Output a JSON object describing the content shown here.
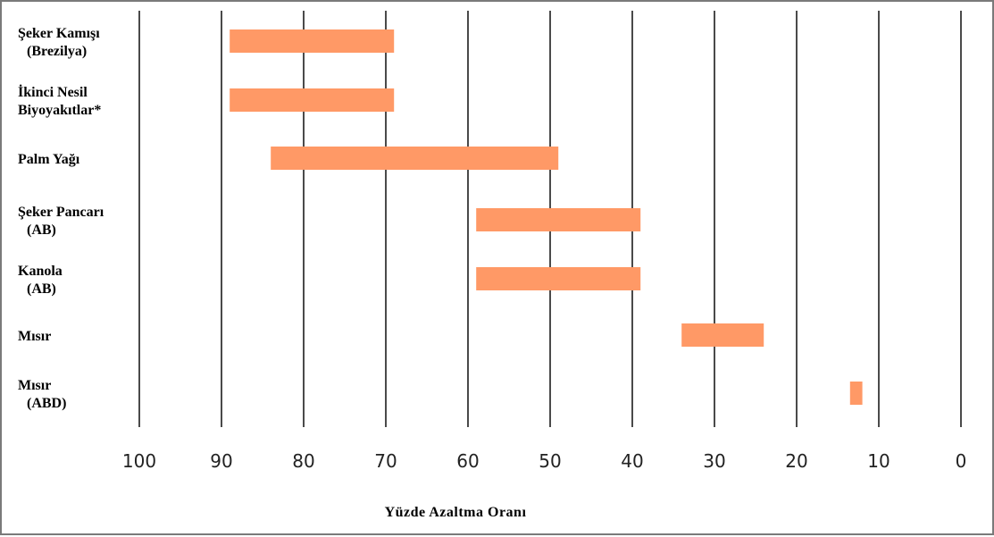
{
  "chart_data": {
    "type": "bar",
    "orientation": "horizontal-range",
    "x_reversed": true,
    "xlim": [
      0,
      100
    ],
    "xticks": [
      100,
      90,
      80,
      70,
      60,
      50,
      40,
      30,
      20,
      10,
      0
    ],
    "xlabel": "Yüzde Azaltma Oranı",
    "grid": true,
    "bar_color": "#FF9966",
    "categories": [
      {
        "lines": [
          "Şeker Kamışı",
          "(Brezilya)"
        ],
        "range": [
          69,
          89
        ]
      },
      {
        "lines": [
          "İkinci Nesil",
          "Biyoyakıtlar*"
        ],
        "range": [
          69,
          89
        ]
      },
      {
        "lines": [
          "Palm Yağı"
        ],
        "range": [
          49,
          84
        ]
      },
      {
        "lines": [
          "Şeker Pancarı",
          "(AB)"
        ],
        "range": [
          39,
          59
        ]
      },
      {
        "lines": [
          "Kanola",
          "(AB)"
        ],
        "range": [
          39,
          59
        ]
      },
      {
        "lines": [
          "Mısır"
        ],
        "range": [
          24,
          34
        ]
      },
      {
        "lines": [
          "Mısır",
          "(ABD)"
        ],
        "range": [
          12,
          13.5
        ]
      }
    ]
  }
}
